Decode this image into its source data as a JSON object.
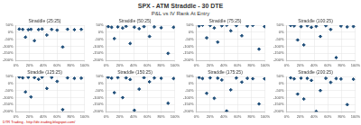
{
  "title": "SPX - ATM Straddle - 30 DTE",
  "subtitle": "P&L vs IV Rank At Entry",
  "footer": "DTR Trading - http://dtr-trading.blogspot.com/",
  "chart_data": [
    {
      "type": "scatter",
      "title": "Straddle (25:25)",
      "color": "#1f4e79",
      "marker": "diamond",
      "grid": true,
      "x": [
        5,
        10,
        14,
        18,
        22,
        27,
        33,
        38,
        45,
        52,
        60,
        68,
        75,
        85,
        95
      ],
      "values": [
        22,
        20,
        -35,
        18,
        21,
        -60,
        19,
        22,
        -20,
        20,
        15,
        -105,
        21,
        18,
        20
      ],
      "xlim": [
        0,
        100
      ],
      "xticks": [
        {
          "value": 0,
          "label": "0%"
        },
        {
          "value": 20,
          "label": "20%"
        },
        {
          "value": 40,
          "label": "40%"
        },
        {
          "value": 60,
          "label": "60%"
        },
        {
          "value": 80,
          "label": "80%"
        },
        {
          "value": 100,
          "label": "100%"
        }
      ],
      "ylim": [
        -200,
        50
      ],
      "yticks": [
        {
          "value": -200,
          "label": "-200%"
        },
        {
          "value": -150,
          "label": "-150%"
        },
        {
          "value": -100,
          "label": "-100%"
        },
        {
          "value": -50,
          "label": "-50%"
        },
        {
          "value": 0,
          "label": "0%"
        },
        {
          "value": 50,
          "label": "50%"
        }
      ]
    },
    {
      "type": "scatter",
      "title": "Straddle (50:25)",
      "color": "#1f4e79",
      "marker": "diamond",
      "grid": true,
      "x": [
        3,
        8,
        12,
        17,
        24,
        29,
        35,
        41,
        48,
        55,
        63,
        70,
        80,
        90,
        98
      ],
      "values": [
        40,
        35,
        -45,
        38,
        30,
        42,
        -80,
        36,
        25,
        40,
        -30,
        38,
        32,
        -150,
        35
      ],
      "xlim": [
        0,
        100
      ],
      "xticks": [
        {
          "value": 0,
          "label": "0%"
        },
        {
          "value": 20,
          "label": "20%"
        },
        {
          "value": 40,
          "label": "40%"
        },
        {
          "value": 60,
          "label": "60%"
        },
        {
          "value": 80,
          "label": "80%"
        },
        {
          "value": 100,
          "label": "100%"
        }
      ],
      "ylim": [
        -200,
        50
      ],
      "yticks": [
        {
          "value": -200,
          "label": "-200%"
        },
        {
          "value": -150,
          "label": "-150%"
        },
        {
          "value": -100,
          "label": "-100%"
        },
        {
          "value": -50,
          "label": "-50%"
        },
        {
          "value": 0,
          "label": "0%"
        },
        {
          "value": 50,
          "label": "50%"
        }
      ]
    },
    {
      "type": "scatter",
      "title": "Straddle (75:25)",
      "color": "#1f4e79",
      "marker": "diamond",
      "grid": true,
      "x": [
        4,
        9,
        15,
        20,
        26,
        31,
        37,
        44,
        50,
        58,
        66,
        74,
        82,
        91,
        99
      ],
      "values": [
        45,
        50,
        -40,
        48,
        30,
        -70,
        46,
        50,
        10,
        47,
        -25,
        44,
        49,
        -120,
        40
      ],
      "xlim": [
        0,
        100
      ],
      "xticks": [
        {
          "value": 0,
          "label": "0%"
        },
        {
          "value": 20,
          "label": "20%"
        },
        {
          "value": 40,
          "label": "40%"
        },
        {
          "value": 60,
          "label": "60%"
        },
        {
          "value": 80,
          "label": "80%"
        },
        {
          "value": 100,
          "label": "100%"
        }
      ],
      "ylim": [
        -200,
        50
      ],
      "yticks": [
        {
          "value": -200,
          "label": "-200%"
        },
        {
          "value": -150,
          "label": "-150%"
        },
        {
          "value": -100,
          "label": "-100%"
        },
        {
          "value": -50,
          "label": "-50%"
        },
        {
          "value": 0,
          "label": "0%"
        },
        {
          "value": 50,
          "label": "50%"
        }
      ]
    },
    {
      "type": "scatter",
      "title": "Straddle (100:25)",
      "color": "#1f4e79",
      "marker": "diamond",
      "grid": true,
      "x": [
        6,
        11,
        16,
        21,
        25,
        30,
        36,
        43,
        49,
        57,
        64,
        72,
        79,
        88,
        97
      ],
      "values": [
        48,
        45,
        -55,
        40,
        -90,
        47,
        35,
        42,
        -30,
        46,
        20,
        -180,
        44,
        38,
        41
      ],
      "xlim": [
        0,
        100
      ],
      "xticks": [
        {
          "value": 0,
          "label": "0%"
        },
        {
          "value": 20,
          "label": "20%"
        },
        {
          "value": 40,
          "label": "40%"
        },
        {
          "value": 60,
          "label": "60%"
        },
        {
          "value": 80,
          "label": "80%"
        },
        {
          "value": 100,
          "label": "100%"
        }
      ],
      "ylim": [
        -200,
        50
      ],
      "yticks": [
        {
          "value": -200,
          "label": "-200%"
        },
        {
          "value": -150,
          "label": "-150%"
        },
        {
          "value": -100,
          "label": "-100%"
        },
        {
          "value": -50,
          "label": "-50%"
        },
        {
          "value": 0,
          "label": "0%"
        },
        {
          "value": 50,
          "label": "50%"
        }
      ]
    },
    {
      "type": "scatter",
      "title": "Straddle (125:25)",
      "color": "#1f4e79",
      "marker": "diamond",
      "grid": true,
      "x": [
        5,
        10,
        14,
        18,
        22,
        27,
        33,
        38,
        45,
        52,
        60,
        68,
        75,
        85,
        95
      ],
      "values": [
        46,
        40,
        -60,
        44,
        -95,
        42,
        30,
        45,
        -35,
        43,
        15,
        -185,
        40,
        36,
        38
      ],
      "xlim": [
        0,
        100
      ],
      "xticks": [
        {
          "value": 0,
          "label": "0%"
        },
        {
          "value": 20,
          "label": "20%"
        },
        {
          "value": 40,
          "label": "40%"
        },
        {
          "value": 60,
          "label": "60%"
        },
        {
          "value": 80,
          "label": "80%"
        },
        {
          "value": 100,
          "label": "100%"
        }
      ],
      "ylim": [
        -200,
        50
      ],
      "yticks": [
        {
          "value": -200,
          "label": "-200%"
        },
        {
          "value": -150,
          "label": "-150%"
        },
        {
          "value": -100,
          "label": "-100%"
        },
        {
          "value": -50,
          "label": "-50%"
        },
        {
          "value": 0,
          "label": "0%"
        },
        {
          "value": 50,
          "label": "50%"
        }
      ]
    },
    {
      "type": "scatter",
      "title": "Straddle (150:25)",
      "color": "#1f4e79",
      "marker": "diamond",
      "grid": true,
      "x": [
        3,
        8,
        12,
        17,
        24,
        29,
        35,
        41,
        48,
        55,
        63,
        70,
        80,
        90,
        98
      ],
      "values": [
        44,
        38,
        -65,
        42,
        -100,
        40,
        28,
        -190,
        -40,
        41,
        12,
        39,
        37,
        -140,
        35
      ],
      "xlim": [
        0,
        100
      ],
      "xticks": [
        {
          "value": 0,
          "label": "0%"
        },
        {
          "value": 20,
          "label": "20%"
        },
        {
          "value": 40,
          "label": "40%"
        },
        {
          "value": 60,
          "label": "60%"
        },
        {
          "value": 80,
          "label": "80%"
        },
        {
          "value": 100,
          "label": "100%"
        }
      ],
      "ylim": [
        -200,
        50
      ],
      "yticks": [
        {
          "value": -200,
          "label": "-200%"
        },
        {
          "value": -150,
          "label": "-150%"
        },
        {
          "value": -100,
          "label": "-100%"
        },
        {
          "value": -50,
          "label": "-50%"
        },
        {
          "value": 0,
          "label": "0%"
        },
        {
          "value": 50,
          "label": "50%"
        }
      ]
    },
    {
      "type": "scatter",
      "title": "Straddle (175:25)",
      "color": "#1f4e79",
      "marker": "diamond",
      "grid": true,
      "x": [
        4,
        9,
        15,
        20,
        26,
        31,
        37,
        44,
        50,
        58,
        66,
        74,
        82,
        91,
        99
      ],
      "values": [
        42,
        35,
        -70,
        40,
        -105,
        38,
        25,
        -195,
        -45,
        39,
        10,
        37,
        34,
        -145,
        33
      ],
      "xlim": [
        0,
        100
      ],
      "xticks": [
        {
          "value": 0,
          "label": "0%"
        },
        {
          "value": 20,
          "label": "20%"
        },
        {
          "value": 40,
          "label": "40%"
        },
        {
          "value": 60,
          "label": "60%"
        },
        {
          "value": 80,
          "label": "80%"
        },
        {
          "value": 100,
          "label": "100%"
        }
      ],
      "ylim": [
        -200,
        50
      ],
      "yticks": [
        {
          "value": -200,
          "label": "-200%"
        },
        {
          "value": -150,
          "label": "-150%"
        },
        {
          "value": -100,
          "label": "-100%"
        },
        {
          "value": -50,
          "label": "-50%"
        },
        {
          "value": 0,
          "label": "0%"
        },
        {
          "value": 50,
          "label": "50%"
        }
      ]
    },
    {
      "type": "scatter",
      "title": "Straddle (200:25)",
      "color": "#1f4e79",
      "marker": "diamond",
      "grid": true,
      "x": [
        6,
        11,
        16,
        21,
        25,
        30,
        36,
        43,
        49,
        57,
        64,
        72,
        79,
        88,
        97
      ],
      "values": [
        40,
        33,
        -75,
        38,
        -110,
        36,
        22,
        -198,
        -50,
        37,
        8,
        35,
        32,
        -150,
        30
      ],
      "xlim": [
        0,
        100
      ],
      "xticks": [
        {
          "value": 0,
          "label": "0%"
        },
        {
          "value": 20,
          "label": "20%"
        },
        {
          "value": 40,
          "label": "40%"
        },
        {
          "value": 60,
          "label": "60%"
        },
        {
          "value": 80,
          "label": "80%"
        },
        {
          "value": 100,
          "label": "100%"
        }
      ],
      "ylim": [
        -200,
        50
      ],
      "yticks": [
        {
          "value": -200,
          "label": "-200%"
        },
        {
          "value": -150,
          "label": "-150%"
        },
        {
          "value": -100,
          "label": "-100%"
        },
        {
          "value": -50,
          "label": "-50%"
        },
        {
          "value": 0,
          "label": "0%"
        },
        {
          "value": 50,
          "label": "50%"
        }
      ]
    }
  ]
}
